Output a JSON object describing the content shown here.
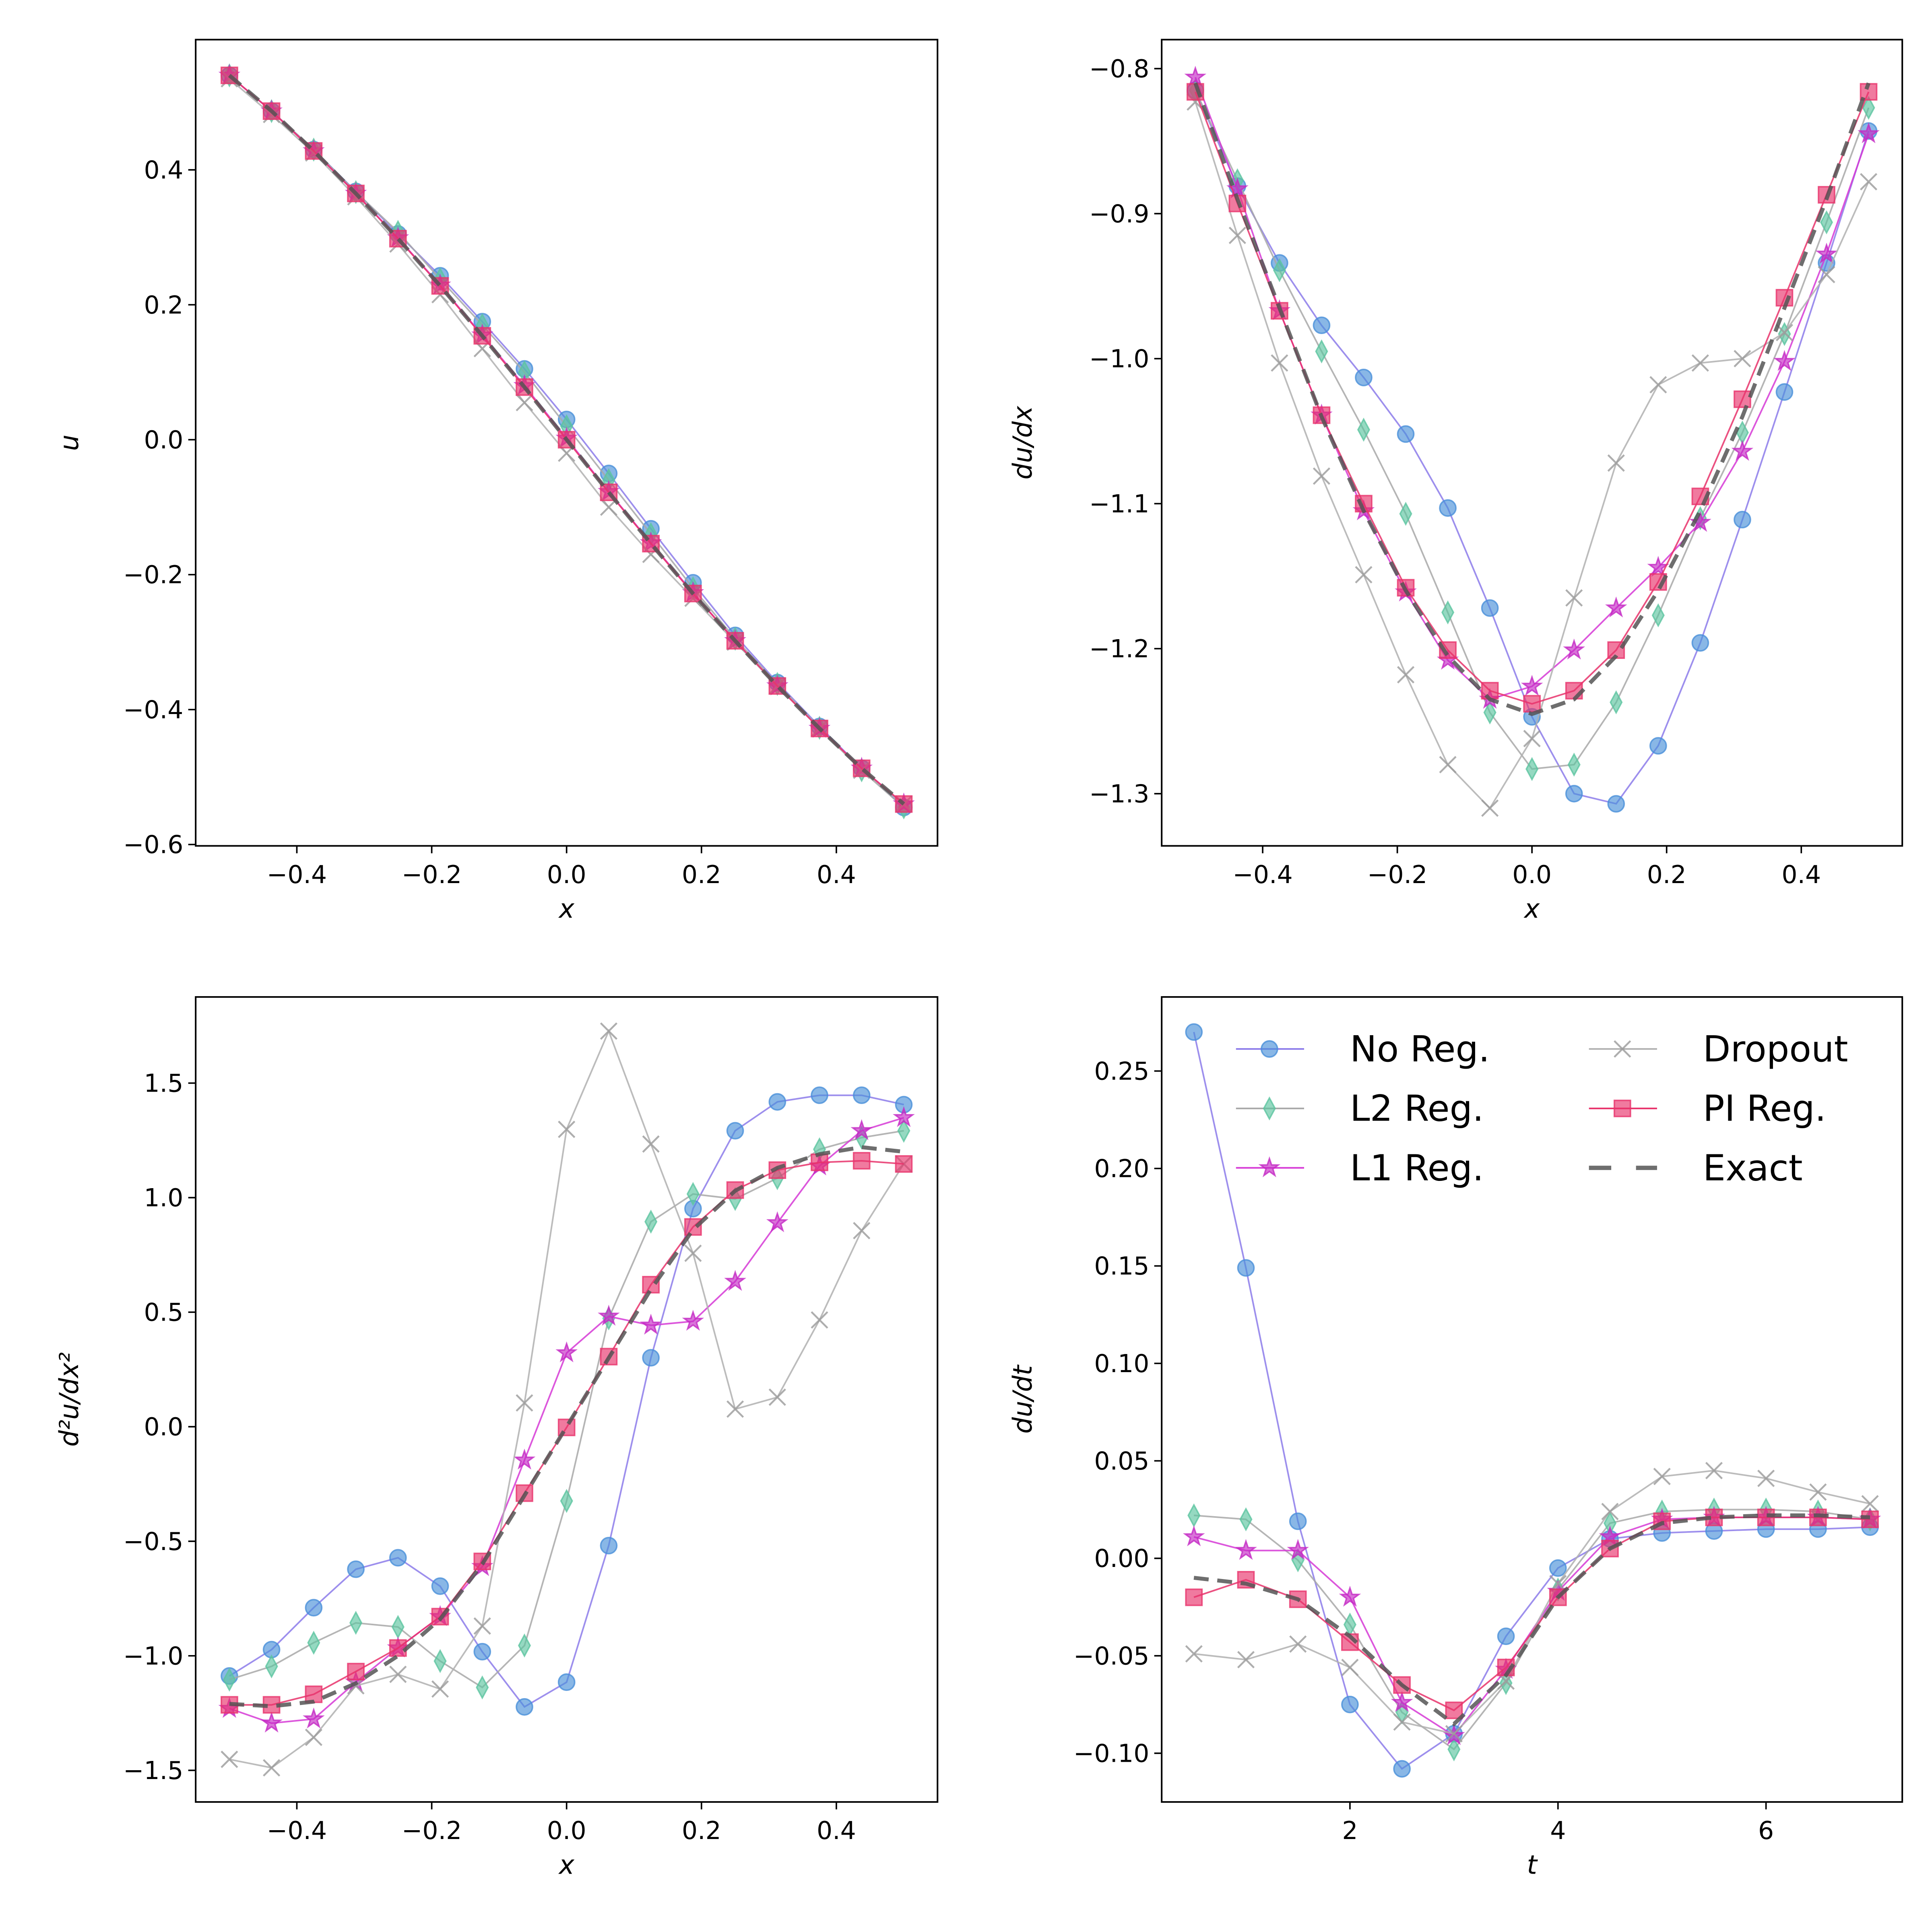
{
  "styles": {
    "No Reg.": {
      "line": "#8c7bea",
      "marker": "circle",
      "fill": "#4a90d9"
    },
    "L2 Reg.": {
      "line": "#a8a8a8",
      "marker": "diamond",
      "fill": "#5cc4a0"
    },
    "L1 Reg.": {
      "line": "#d63ad6",
      "marker": "star",
      "fill": "#c42ac4"
    },
    "Dropout": {
      "line": "#b0b0b0",
      "marker": "x",
      "fill": "#9a9a9a"
    },
    "PI Reg.": {
      "line": "#e8336b",
      "marker": "square",
      "fill": "#e8336b"
    },
    "Exact": {
      "line": "#555555",
      "marker": "dash",
      "fill": "#555555"
    }
  },
  "legend": {
    "placement": "upper center",
    "entries": [
      "No Reg.",
      "L2 Reg.",
      "L1 Reg.",
      "Dropout",
      "PI Reg.",
      "Exact"
    ]
  },
  "chart_data": [
    {
      "type": "line",
      "xlabel": "x",
      "ylabel": "u",
      "xlim": [
        -0.55,
        0.55
      ],
      "ylim": [
        -0.602,
        0.593
      ],
      "xticks": [
        -0.4,
        -0.2,
        0.0,
        0.2,
        0.4
      ],
      "xticklabels": [
        "−0.4",
        "−0.2",
        "0.0",
        "0.2",
        "0.4"
      ],
      "yticks": [
        0.4,
        0.2,
        0.0,
        -0.2,
        -0.4,
        -0.6
      ],
      "yticklabels": [
        "0.4",
        "0.2",
        "0.0",
        "−0.2",
        "−0.4",
        "−0.6"
      ],
      "x": [
        -0.5,
        -0.4375,
        -0.375,
        -0.3125,
        -0.25,
        -0.1875,
        -0.125,
        -0.0625,
        0,
        0.0625,
        0.125,
        0.1875,
        0.25,
        0.3125,
        0.375,
        0.4375,
        0.5
      ],
      "series": [
        {
          "name": "No Reg.",
          "values": [
            0.54,
            0.487,
            0.43,
            0.368,
            0.305,
            0.243,
            0.175,
            0.105,
            0.03,
            -0.05,
            -0.132,
            -0.212,
            -0.29,
            -0.36,
            -0.425,
            -0.487,
            -0.545
          ]
        },
        {
          "name": "L2 Reg.",
          "values": [
            0.54,
            0.487,
            0.43,
            0.367,
            0.308,
            0.238,
            0.17,
            0.1,
            0.02,
            -0.06,
            -0.14,
            -0.22,
            -0.295,
            -0.362,
            -0.427,
            -0.49,
            -0.545
          ]
        },
        {
          "name": "L1 Reg.",
          "values": [
            0.54,
            0.487,
            0.428,
            0.365,
            0.299,
            0.229,
            0.155,
            0.08,
            0.002,
            -0.077,
            -0.153,
            -0.227,
            -0.298,
            -0.365,
            -0.428,
            -0.487,
            -0.54
          ]
        },
        {
          "name": "Dropout",
          "values": [
            0.535,
            0.482,
            0.425,
            0.36,
            0.29,
            0.215,
            0.135,
            0.055,
            -0.02,
            -0.1,
            -0.17,
            -0.235,
            -0.3,
            -0.365,
            -0.428,
            -0.49,
            -0.54
          ]
        },
        {
          "name": "PI Reg.",
          "values": [
            0.54,
            0.487,
            0.428,
            0.365,
            0.298,
            0.228,
            0.154,
            0.078,
            0,
            -0.078,
            -0.154,
            -0.228,
            -0.298,
            -0.365,
            -0.428,
            -0.487,
            -0.54
          ]
        },
        {
          "name": "Exact",
          "values": [
            0.54,
            0.487,
            0.428,
            0.365,
            0.298,
            0.228,
            0.154,
            0.078,
            0,
            -0.078,
            -0.154,
            -0.228,
            -0.298,
            -0.365,
            -0.428,
            -0.487,
            -0.54
          ]
        }
      ]
    },
    {
      "type": "line",
      "xlabel": "x",
      "ylabel": "du/dx",
      "xlim": [
        -0.55,
        0.55
      ],
      "ylim": [
        -1.336,
        -0.78
      ],
      "xticks": [
        -0.4,
        -0.2,
        0.0,
        0.2,
        0.4
      ],
      "xticklabels": [
        "−0.4",
        "−0.2",
        "0.0",
        "0.2",
        "0.4"
      ],
      "yticks": [
        -0.8,
        -0.9,
        -1.0,
        -1.1,
        -1.2,
        -1.3
      ],
      "yticklabels": [
        "−0.8",
        "−0.9",
        "−1.0",
        "−1.1",
        "−1.2",
        "−1.3"
      ],
      "x": [
        -0.5,
        -0.4375,
        -0.375,
        -0.3125,
        -0.25,
        -0.1875,
        -0.125,
        -0.0625,
        0,
        0.0625,
        0.125,
        0.1875,
        0.25,
        0.3125,
        0.375,
        0.4375,
        0.5
      ],
      "series": [
        {
          "name": "No Reg.",
          "values": [
            -0.815,
            -0.881,
            -0.934,
            -0.977,
            -1.013,
            -1.052,
            -1.103,
            -1.172,
            -1.247,
            -1.3,
            -1.307,
            -1.267,
            -1.196,
            -1.111,
            -1.023,
            -0.934,
            -0.843
          ]
        },
        {
          "name": "L2 Reg.",
          "values": [
            -0.815,
            -0.877,
            -0.939,
            -0.995,
            -1.049,
            -1.107,
            -1.175,
            -1.244,
            -1.283,
            -1.28,
            -1.237,
            -1.177,
            -1.11,
            -1.051,
            -0.983,
            -0.906,
            -0.827
          ]
        },
        {
          "name": "L1 Reg.",
          "values": [
            -0.806,
            -0.883,
            -0.967,
            -1.039,
            -1.105,
            -1.161,
            -1.208,
            -1.235,
            -1.226,
            -1.201,
            -1.172,
            -1.144,
            -1.113,
            -1.064,
            -1.002,
            -0.928,
            -0.845
          ]
        },
        {
          "name": "Dropout",
          "values": [
            -0.823,
            -0.915,
            -1.003,
            -1.081,
            -1.149,
            -1.218,
            -1.28,
            -1.31,
            -1.262,
            -1.165,
            -1.072,
            -1.018,
            -1.003,
            -1.0,
            -0.982,
            -0.942,
            -0.878
          ]
        },
        {
          "name": "PI Reg.",
          "values": [
            -0.816,
            -0.893,
            -0.967,
            -1.039,
            -1.1,
            -1.158,
            -1.201,
            -1.229,
            -1.238,
            -1.229,
            -1.201,
            -1.154,
            -1.095,
            -1.028,
            -0.958,
            -0.887,
            -0.816
          ]
        },
        {
          "name": "Exact",
          "values": [
            -0.81,
            -0.89,
            -0.965,
            -1.04,
            -1.105,
            -1.16,
            -1.205,
            -1.235,
            -1.245,
            -1.235,
            -1.205,
            -1.16,
            -1.105,
            -1.04,
            -0.965,
            -0.89,
            -0.81
          ]
        }
      ]
    },
    {
      "type": "line",
      "xlabel": "x",
      "ylabel": "d²u/dx²",
      "xlim": [
        -0.55,
        0.55
      ],
      "ylim": [
        -1.638,
        1.876
      ],
      "xticks": [
        -0.4,
        -0.2,
        0.0,
        0.2,
        0.4
      ],
      "xticklabels": [
        "−0.4",
        "−0.2",
        "0.0",
        "0.2",
        "0.4"
      ],
      "yticks": [
        1.5,
        1.0,
        0.5,
        0.0,
        -0.5,
        -1.0,
        -1.5
      ],
      "yticklabels": [
        "1.5",
        "1.0",
        "0.5",
        "0.0",
        "−0.5",
        "−1.0",
        "−1.5"
      ],
      "x": [
        -0.5,
        -0.4375,
        -0.375,
        -0.3125,
        -0.25,
        -0.1875,
        -0.125,
        -0.0625,
        0,
        0.0625,
        0.125,
        0.1875,
        0.25,
        0.3125,
        0.375,
        0.4375,
        0.5
      ],
      "series": [
        {
          "name": "No Reg.",
          "values": [
            -1.088,
            -0.973,
            -0.79,
            -0.622,
            -0.572,
            -0.696,
            -0.982,
            -1.223,
            -1.115,
            -0.519,
            0.301,
            0.952,
            1.292,
            1.418,
            1.447,
            1.447,
            1.406
          ]
        },
        {
          "name": "L2 Reg.",
          "values": [
            -1.104,
            -1.046,
            -0.943,
            -0.856,
            -0.874,
            -1.023,
            -1.138,
            -0.955,
            -0.324,
            0.473,
            0.895,
            1.016,
            0.994,
            1.085,
            1.211,
            1.262,
            1.292
          ]
        },
        {
          "name": "L1 Reg.",
          "values": [
            -1.23,
            -1.294,
            -1.276,
            -1.115,
            -0.966,
            -0.829,
            -0.611,
            -0.146,
            0.322,
            0.482,
            0.443,
            0.46,
            0.634,
            0.89,
            1.138,
            1.292,
            1.349
          ]
        },
        {
          "name": "Dropout",
          "values": [
            -1.452,
            -1.489,
            -1.356,
            -1.131,
            -1.081,
            -1.145,
            -0.87,
            0.104,
            1.298,
            1.727,
            1.234,
            0.757,
            0.077,
            0.129,
            0.466,
            0.856,
            1.147
          ]
        },
        {
          "name": "PI Reg.",
          "values": [
            -1.214,
            -1.214,
            -1.168,
            -1.069,
            -0.966,
            -0.829,
            -0.588,
            -0.29,
            -0.003,
            0.306,
            0.62,
            0.872,
            1.033,
            1.12,
            1.154,
            1.161,
            1.147
          ]
        },
        {
          "name": "Exact",
          "values": [
            -1.21,
            -1.22,
            -1.2,
            -1.12,
            -1.0,
            -0.84,
            -0.6,
            -0.3,
            0.0,
            0.3,
            0.6,
            0.86,
            1.03,
            1.13,
            1.19,
            1.22,
            1.2
          ]
        }
      ]
    },
    {
      "type": "line",
      "xlabel": "t",
      "ylabel": "du/dt",
      "xlim": [
        0.19,
        7.31
      ],
      "ylim": [
        -0.125,
        0.288
      ],
      "xticks": [
        2,
        4,
        6
      ],
      "xticklabels": [
        "2",
        "4",
        "6"
      ],
      "yticks": [
        0.25,
        0.2,
        0.15,
        0.1,
        0.05,
        0.0,
        -0.05,
        -0.1
      ],
      "yticklabels": [
        "0.25",
        "0.20",
        "0.15",
        "0.10",
        "0.05",
        "0.00",
        "−0.05",
        "−0.10"
      ],
      "x": [
        0.5,
        1,
        1.5,
        2,
        2.5,
        3,
        3.5,
        4,
        4.5,
        5,
        5.5,
        6,
        6.5,
        7
      ],
      "legend": true,
      "series": [
        {
          "name": "No Reg.",
          "values": [
            0.27,
            0.149,
            0.019,
            -0.075,
            -0.108,
            -0.09,
            -0.04,
            -0.005,
            0.01,
            0.013,
            0.014,
            0.015,
            0.015,
            0.016
          ]
        },
        {
          "name": "L2 Reg.",
          "values": [
            0.022,
            0.02,
            -0.001,
            -0.034,
            -0.079,
            -0.098,
            -0.064,
            -0.016,
            0.018,
            0.024,
            0.025,
            0.025,
            0.024,
            0.02
          ]
        },
        {
          "name": "L1 Reg.",
          "values": [
            0.011,
            0.004,
            0.004,
            -0.02,
            -0.074,
            -0.091,
            -0.057,
            -0.017,
            0.011,
            0.02,
            0.021,
            0.021,
            0.021,
            0.02
          ]
        },
        {
          "name": "Dropout",
          "values": [
            -0.049,
            -0.052,
            -0.044,
            -0.056,
            -0.084,
            -0.09,
            -0.063,
            -0.013,
            0.024,
            0.042,
            0.045,
            0.041,
            0.034,
            0.028
          ]
        },
        {
          "name": "PI Reg.",
          "values": [
            -0.02,
            -0.011,
            -0.021,
            -0.043,
            -0.065,
            -0.078,
            -0.056,
            -0.02,
            0.005,
            0.019,
            0.021,
            0.021,
            0.021,
            0.02
          ]
        },
        {
          "name": "Exact",
          "values": [
            -0.01,
            -0.013,
            -0.021,
            -0.04,
            -0.065,
            -0.085,
            -0.06,
            -0.02,
            0.005,
            0.018,
            0.021,
            0.022,
            0.022,
            0.021
          ]
        }
      ]
    }
  ]
}
